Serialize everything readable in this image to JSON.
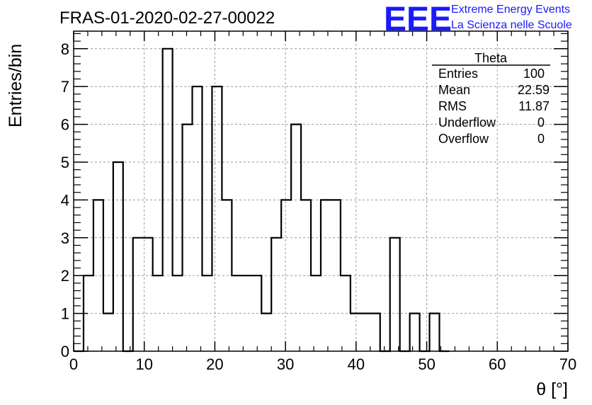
{
  "chart_data": {
    "type": "bar",
    "title": "FRAS-01-2020-02-27-00022",
    "xlabel": "θ [°]",
    "ylabel": "Entries/bin",
    "xlim": [
      0,
      70
    ],
    "ylim": [
      0,
      8.5
    ],
    "grid": true,
    "x_ticks": [
      "0",
      "10",
      "20",
      "30",
      "40",
      "50",
      "60",
      "70"
    ],
    "y_ticks": [
      "0",
      "1",
      "2",
      "3",
      "4",
      "5",
      "6",
      "7",
      "8"
    ],
    "bin_width": 1.4,
    "bin_starts": [
      0,
      1.4,
      2.8,
      4.2,
      5.6,
      7.0,
      8.4,
      9.8,
      11.2,
      12.6,
      14.0,
      15.4,
      16.8,
      18.2,
      19.6,
      21.0,
      22.4,
      23.8,
      25.2,
      26.6,
      28.0,
      29.4,
      30.8,
      32.2,
      33.6,
      35.0,
      36.4,
      37.8,
      39.2,
      40.6,
      42.0,
      43.4,
      44.8,
      46.2,
      47.6,
      49.0,
      50.4,
      51.8
    ],
    "values": [
      0,
      2,
      4,
      1,
      5,
      0,
      3,
      3,
      2,
      8,
      2,
      6,
      7,
      2,
      7,
      4,
      2,
      2,
      2,
      1,
      3,
      4,
      6,
      4,
      2,
      4,
      4,
      2,
      1,
      1,
      1,
      0,
      3,
      0,
      1,
      0,
      1,
      0
    ]
  },
  "logo": {
    "mark": "EEE",
    "line1": "Extreme Energy Events",
    "line2": "La Scienza nelle Scuole"
  },
  "stats": {
    "name": "Theta",
    "rows": [
      {
        "label": "Entries",
        "value": "100"
      },
      {
        "label": "Mean",
        "value": "22.59"
      },
      {
        "label": "RMS",
        "value": "11.87"
      },
      {
        "label": "Underflow",
        "value": "0"
      },
      {
        "label": "Overflow",
        "value": "0"
      }
    ]
  }
}
